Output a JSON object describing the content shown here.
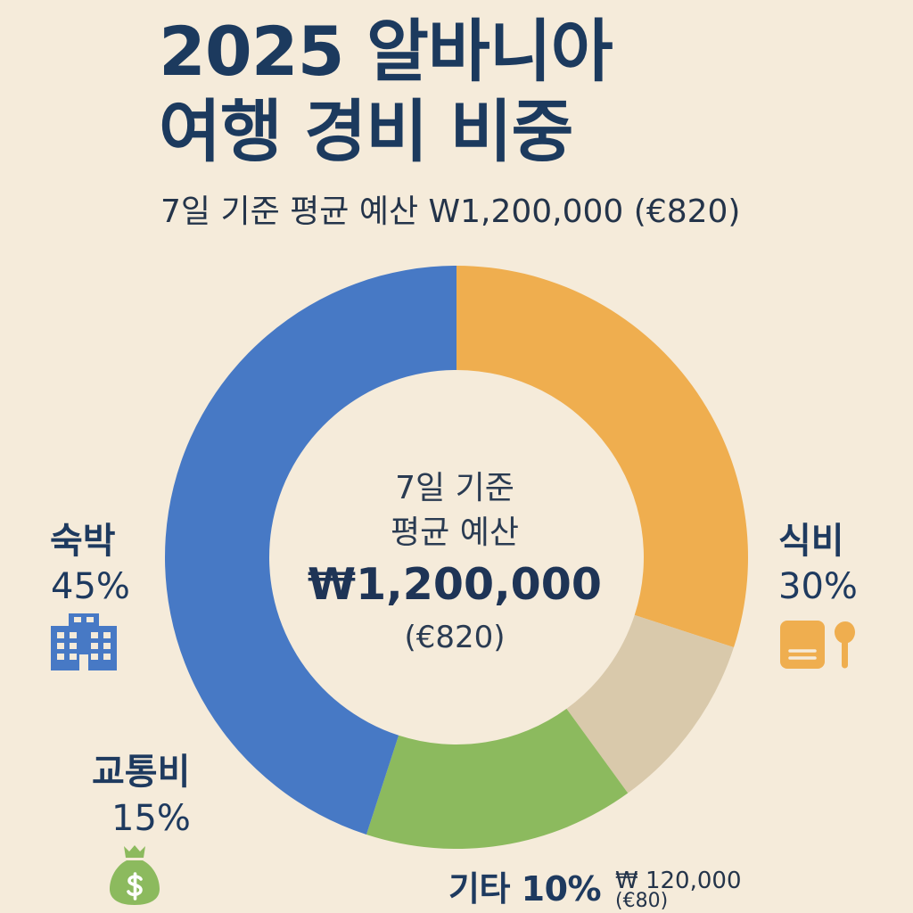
{
  "colors": {
    "background": "#F5EBDA",
    "text": "#1E3A5F"
  },
  "chart_data": {
    "type": "pie",
    "donut": true,
    "title": [
      "2025 알바니아",
      "여행 경비 비중"
    ],
    "subtitle": "7일 기준 평균 예산 W1,200,000 (€820)",
    "center_label": {
      "line1": "7일 기준",
      "line2": "평균 예산",
      "amount": "₩1,200,000",
      "amount_eur": "(€820)"
    },
    "categories": [
      "숙박",
      "식비",
      "교통비",
      "기타"
    ],
    "values": [
      45,
      30,
      15,
      10
    ],
    "value_labels": [
      "45%",
      "30%",
      "15%",
      "10%"
    ],
    "colors": [
      "#4779C5",
      "#EFAE4F",
      "#8CBA5E",
      null
    ],
    "icons": [
      "building-icon",
      "food-icon",
      "money-bag-icon",
      null
    ],
    "amounts": [
      null,
      null,
      null,
      {
        "krw": "₩ 120,000",
        "eur": "(€80)"
      }
    ]
  }
}
